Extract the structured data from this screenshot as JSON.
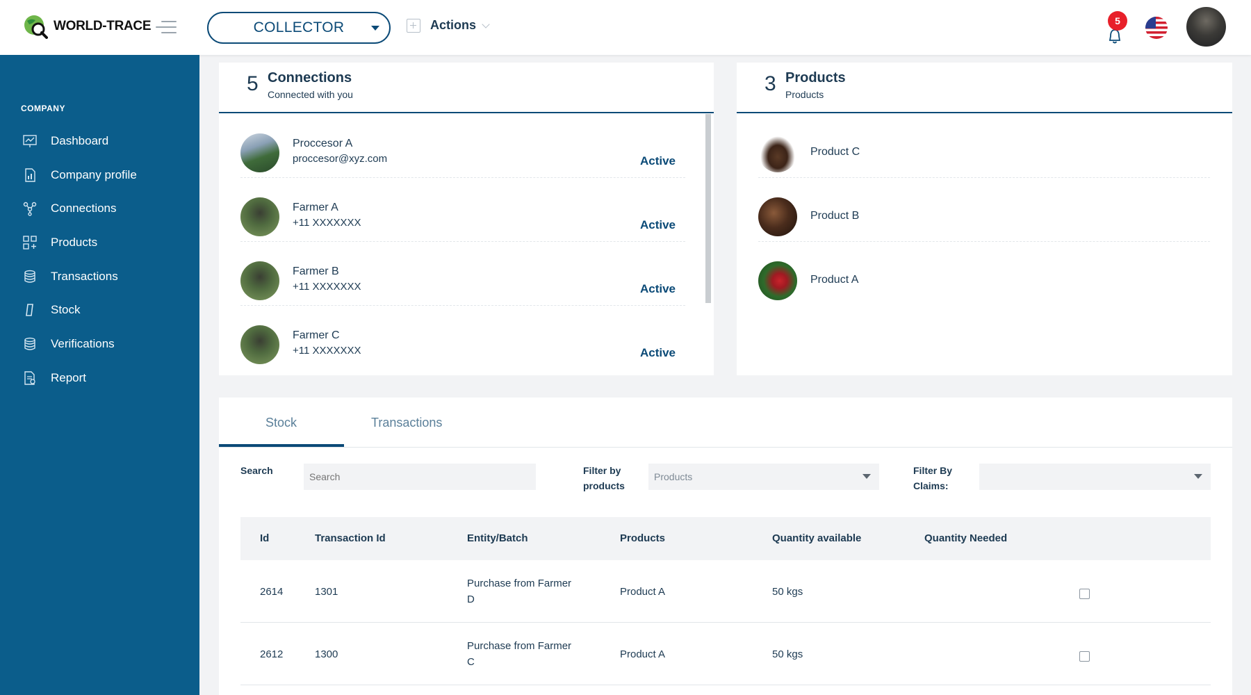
{
  "header": {
    "brand": "WORLD-TRACE",
    "role": "COLLECTOR",
    "actions_label": "Actions",
    "notification_count": "5"
  },
  "sidebar": {
    "section": "COMPANY",
    "items": [
      {
        "label": "Dashboard",
        "icon": "chart-board-icon"
      },
      {
        "label": "Company profile",
        "icon": "document-chart-icon"
      },
      {
        "label": "Connections",
        "icon": "network-icon"
      },
      {
        "label": "Products",
        "icon": "grid-plus-icon"
      },
      {
        "label": "Transactions",
        "icon": "stack-icon"
      },
      {
        "label": "Stock",
        "icon": "stock-icon"
      },
      {
        "label": "Verifications",
        "icon": "stack-icon"
      },
      {
        "label": "Report",
        "icon": "report-icon"
      }
    ]
  },
  "connections": {
    "count": "5",
    "title": "Connections",
    "subtitle": "Connected with you",
    "items": [
      {
        "name": "Proccesor A",
        "contact": "proccesor@xyz.com",
        "status": "Active"
      },
      {
        "name": "Farmer A",
        "contact": "+11 XXXXXXX",
        "status": "Active"
      },
      {
        "name": "Farmer B",
        "contact": "+11 XXXXXXX",
        "status": "Active"
      },
      {
        "name": "Farmer C",
        "contact": "+11 XXXXXXX",
        "status": "Active"
      }
    ]
  },
  "products": {
    "count": "3",
    "title": "Products",
    "subtitle": "Products",
    "items": [
      {
        "name": "Product C"
      },
      {
        "name": "Product B"
      },
      {
        "name": "Product A"
      }
    ]
  },
  "panel": {
    "tabs": [
      "Stock",
      "Transactions"
    ],
    "filters": {
      "search_label": "Search",
      "search_placeholder": "Search",
      "products_label_1": "Filter by",
      "products_label_2": "products",
      "products_value": "Products",
      "claims_label_1": "Filter By",
      "claims_label_2": "Claims:"
    },
    "columns": [
      "Id",
      "Transaction Id",
      "Entity/Batch",
      "Products",
      "Quantity available",
      "Quantity Needed"
    ],
    "rows": [
      {
        "id": "2614",
        "transaction_id": "1301",
        "entity_1": "Purchase from Farmer",
        "entity_2": "D",
        "product": "Product A",
        "quantity": "50 kgs"
      },
      {
        "id": "2612",
        "transaction_id": "1300",
        "entity_1": "Purchase from Farmer",
        "entity_2": "C",
        "product": "Product A",
        "quantity": "50 kgs"
      }
    ]
  },
  "colors": {
    "sidebar": "#0b5d8b",
    "accent": "#0b4a77",
    "badge": "#e8202a"
  }
}
